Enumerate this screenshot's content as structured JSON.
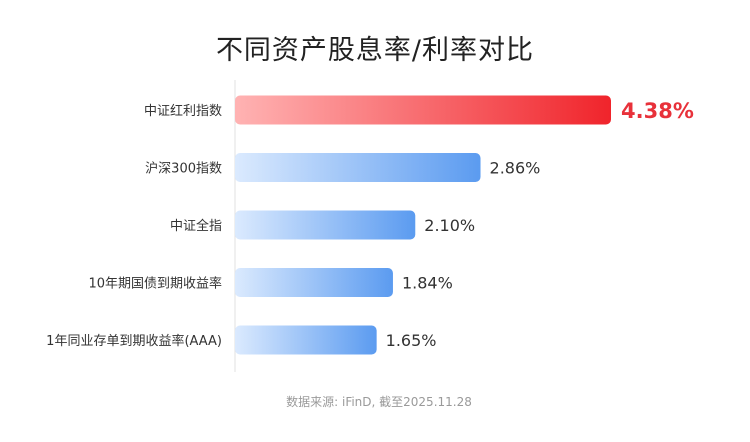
{
  "chart_data": {
    "type": "bar",
    "orientation": "horizontal",
    "title": "不同资产股息率/利率对比",
    "categories": [
      "中证红利指数",
      "沪深300指数",
      "中证全指",
      "10年期国债到期收益率",
      "1年同业存单到期收益率(AAA)"
    ],
    "values": [
      4.38,
      2.86,
      2.1,
      1.84,
      1.65
    ],
    "value_labels": [
      "4.38%",
      "2.86%",
      "2.10%",
      "1.84%",
      "1.65%"
    ],
    "highlight_index": 0,
    "xlim": [
      0,
      4.38
    ],
    "grid": false,
    "legend": "none",
    "colors": {
      "highlight_start": "#ffb3b3",
      "highlight_end": "#f0242b",
      "highlight_label": "#e8313a",
      "bar_start": "#dbeafe",
      "bar_end": "#5b9bf0",
      "label": "#333333",
      "axis": "#e0e0e0"
    }
  },
  "source": "数据来源: iFinD, 截至2025.11.28"
}
